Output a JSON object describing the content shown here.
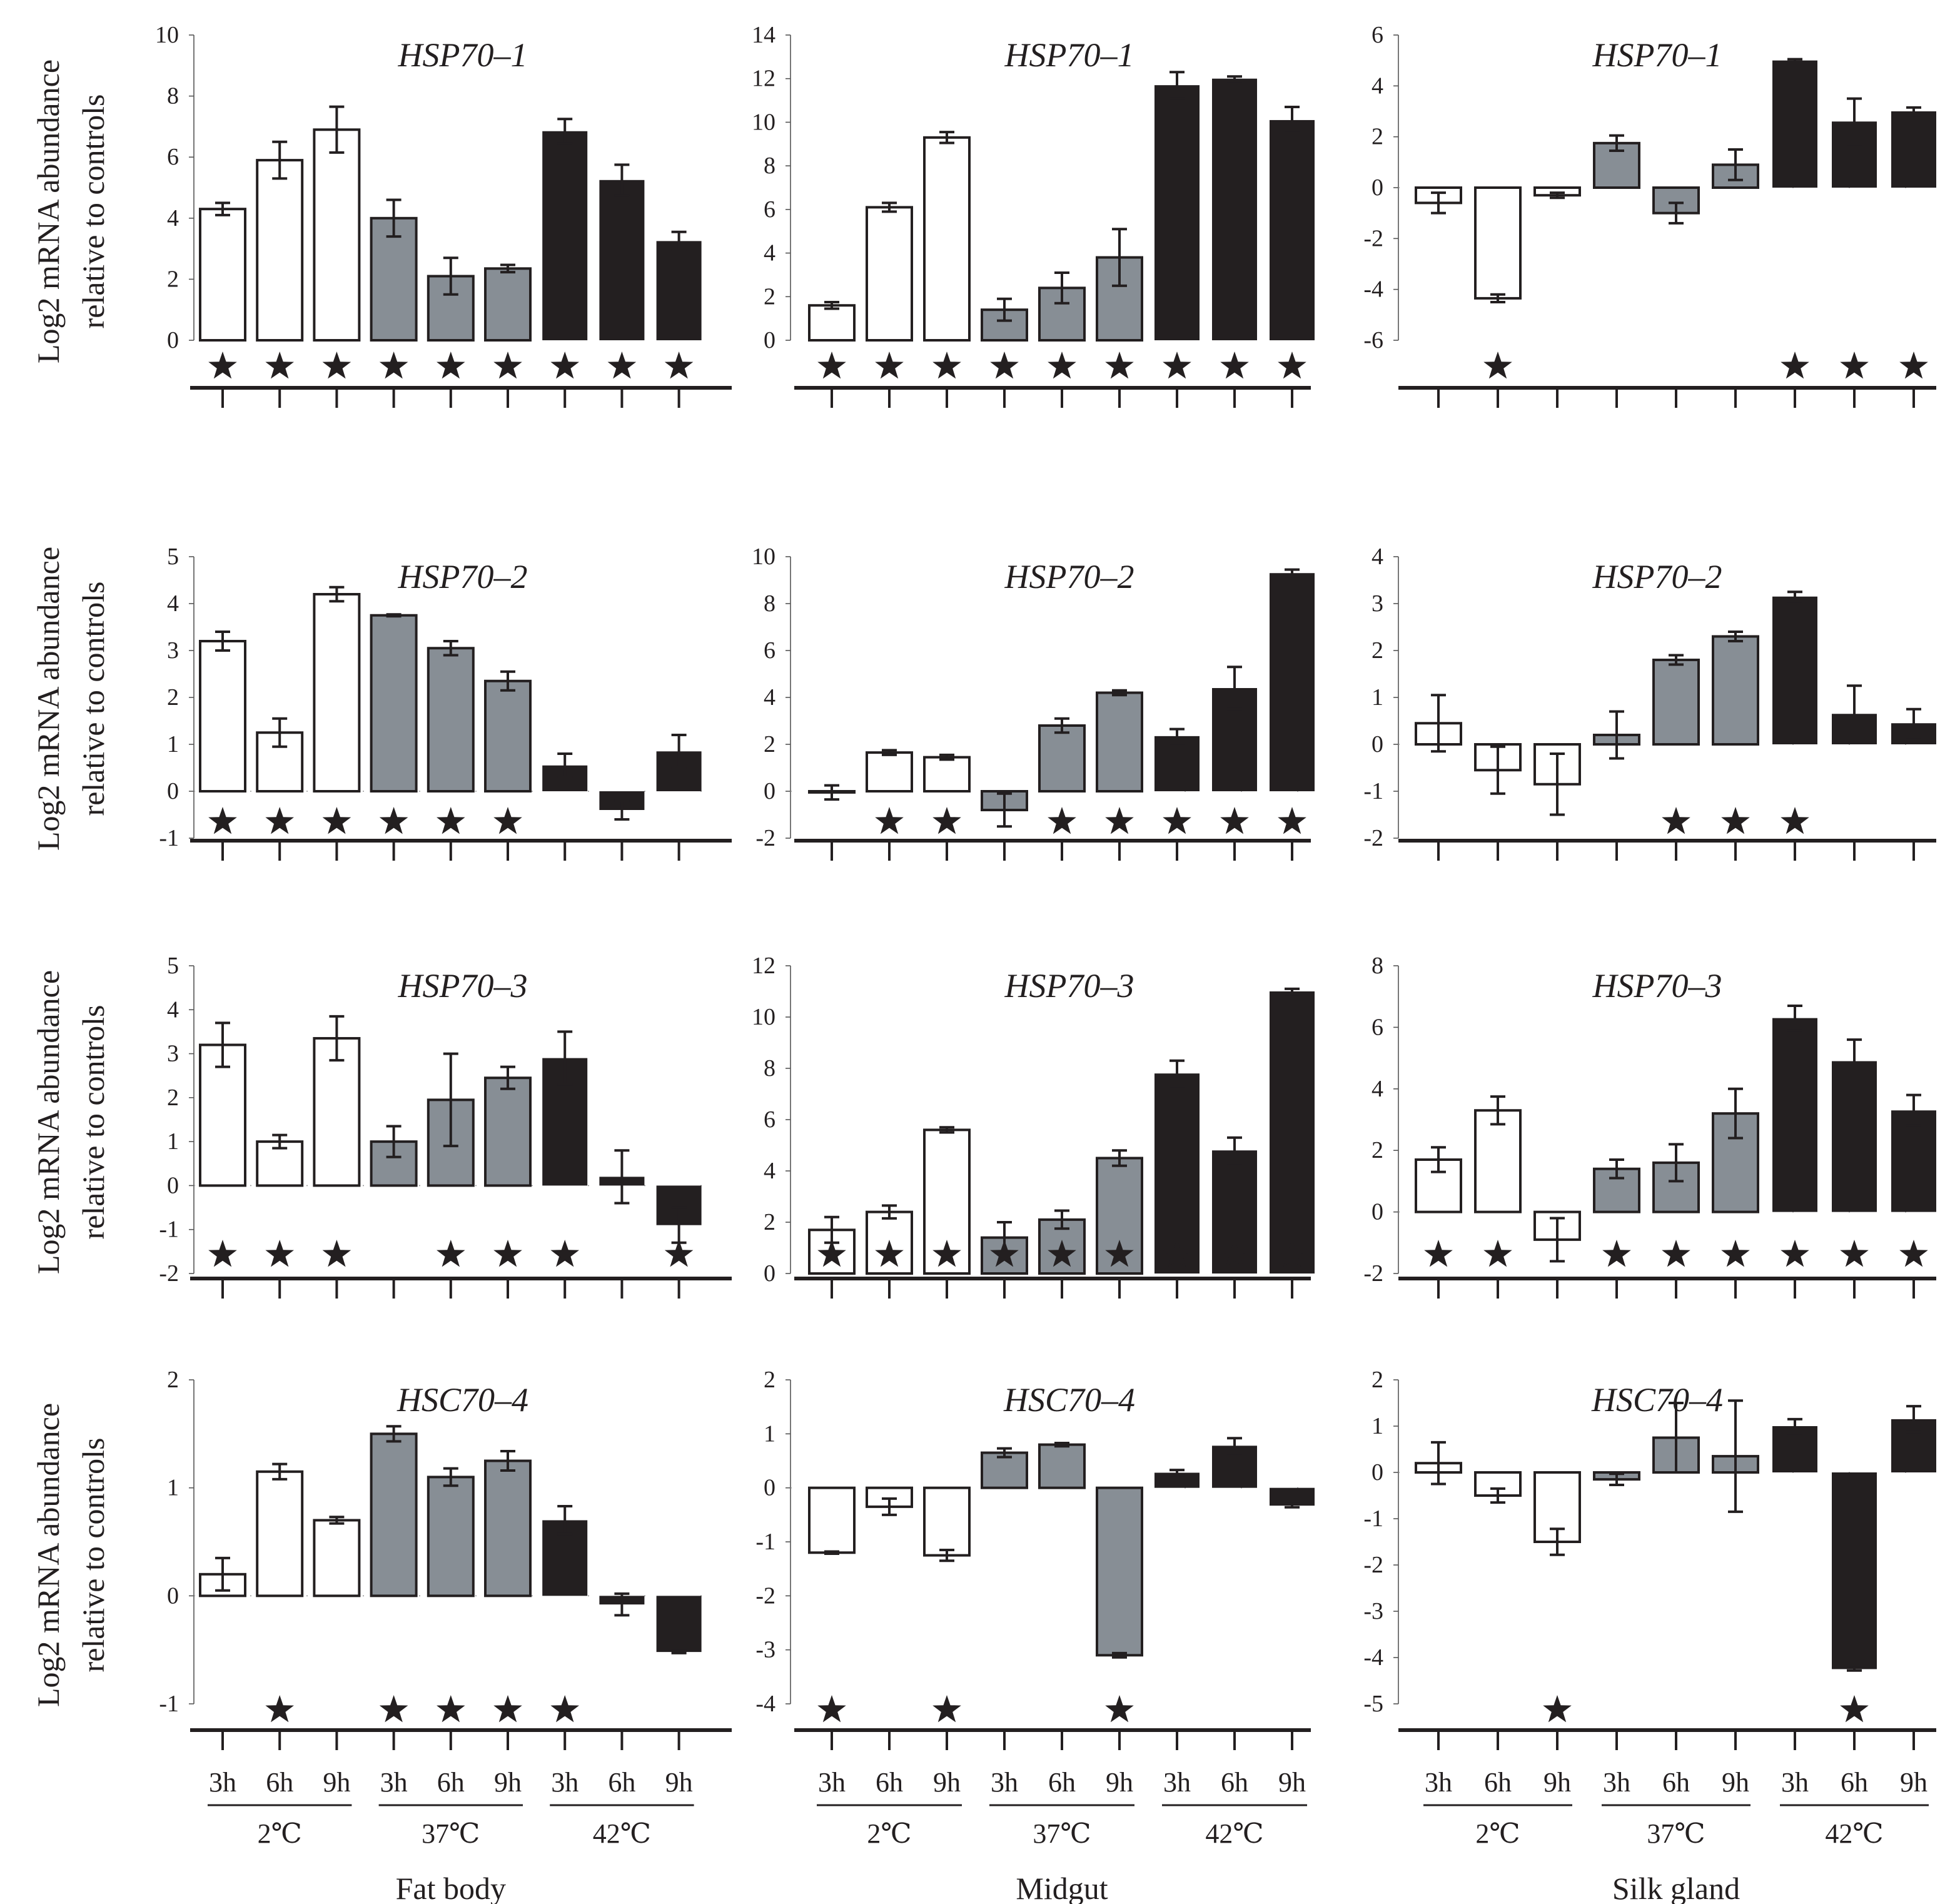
{
  "colors": {
    "cold": "#ffffff",
    "heat37": "#878e95",
    "heat42": "#231f20",
    "ink": "#231f20"
  },
  "ylabel_line1": "Log2 mRNA abundance",
  "ylabel_line2": "relative to controls",
  "time_labels": [
    "3h",
    "6h",
    "9h",
    "3h",
    "6h",
    "9h",
    "3h",
    "6h",
    "9h"
  ],
  "temperature_labels": [
    "2℃",
    "37℃",
    "42℃"
  ],
  "tissues": [
    "Fat body",
    "Midgut",
    "Silk gland"
  ],
  "chart_data": [
    {
      "type": "bar",
      "title": "HSP70–1",
      "tissue": "Fat body",
      "ylim": [
        0,
        10
      ],
      "yticks": [
        0,
        2,
        4,
        6,
        8,
        10
      ],
      "values": [
        4.3,
        5.9,
        6.9,
        4.0,
        2.1,
        2.35,
        6.85,
        5.25,
        3.25
      ],
      "errors": [
        0.2,
        0.6,
        0.75,
        0.6,
        0.6,
        0.12,
        0.4,
        0.5,
        0.3
      ],
      "significant": [
        1,
        1,
        1,
        1,
        1,
        1,
        1,
        1,
        1
      ]
    },
    {
      "type": "bar",
      "title": "HSP70–1",
      "tissue": "Midgut",
      "ylim": [
        0,
        14
      ],
      "yticks": [
        0,
        2,
        4,
        6,
        8,
        10,
        12,
        14
      ],
      "values": [
        1.6,
        6.1,
        9.3,
        1.4,
        2.4,
        3.8,
        11.7,
        12.0,
        10.1
      ],
      "errors": [
        0.15,
        0.2,
        0.25,
        0.5,
        0.7,
        1.3,
        0.6,
        0.1,
        0.6
      ],
      "significant": [
        1,
        1,
        1,
        1,
        1,
        1,
        1,
        1,
        1
      ]
    },
    {
      "type": "bar",
      "title": "HSP70–1",
      "tissue": "Silk gland",
      "ylim": [
        -6,
        6
      ],
      "yticks": [
        -6,
        -4,
        -2,
        0,
        2,
        4,
        6
      ],
      "values": [
        -0.6,
        -4.35,
        -0.3,
        1.75,
        -1.0,
        0.9,
        5.0,
        2.6,
        3.0
      ],
      "errors": [
        0.4,
        0.15,
        0.1,
        0.3,
        0.4,
        0.6,
        0.05,
        0.9,
        0.15
      ],
      "significant": [
        0,
        1,
        0,
        0,
        0,
        0,
        1,
        1,
        1
      ]
    },
    {
      "type": "bar",
      "title": "HSP70–2",
      "tissue": "Fat body",
      "ylim": [
        -1,
        5
      ],
      "yticks": [
        -1,
        0,
        1,
        2,
        3,
        4,
        5
      ],
      "values": [
        3.2,
        1.25,
        4.2,
        3.75,
        3.05,
        2.35,
        0.55,
        -0.4,
        0.85
      ],
      "errors": [
        0.2,
        0.3,
        0.15,
        0.02,
        0.15,
        0.2,
        0.25,
        0.2,
        0.35
      ],
      "significant": [
        1,
        1,
        1,
        1,
        1,
        1,
        0,
        0,
        0
      ]
    },
    {
      "type": "bar",
      "title": "HSP70–2",
      "tissue": "Midgut",
      "ylim": [
        -2,
        10
      ],
      "yticks": [
        -2,
        0,
        2,
        4,
        6,
        8,
        10
      ],
      "values": [
        -0.05,
        1.65,
        1.45,
        -0.8,
        2.8,
        4.2,
        2.35,
        4.4,
        9.3
      ],
      "errors": [
        0.3,
        0.1,
        0.1,
        0.7,
        0.3,
        0.1,
        0.3,
        0.9,
        0.15
      ],
      "significant": [
        0,
        1,
        1,
        0,
        1,
        1,
        1,
        1,
        1
      ]
    },
    {
      "type": "bar",
      "title": "HSP70–2",
      "tissue": "Silk gland",
      "ylim": [
        -2,
        4
      ],
      "yticks": [
        -2,
        -1,
        0,
        1,
        2,
        3,
        4
      ],
      "values": [
        0.45,
        -0.55,
        -0.85,
        0.2,
        1.8,
        2.3,
        3.15,
        0.65,
        0.45
      ],
      "errors": [
        0.6,
        0.5,
        0.65,
        0.5,
        0.1,
        0.1,
        0.1,
        0.6,
        0.3
      ],
      "significant": [
        0,
        0,
        0,
        0,
        1,
        1,
        1,
        0,
        0
      ]
    },
    {
      "type": "bar",
      "title": "HSP70–3",
      "tissue": "Fat body",
      "ylim": [
        -2,
        5
      ],
      "yticks": [
        -2,
        -1,
        0,
        1,
        2,
        3,
        4,
        5
      ],
      "values": [
        3.2,
        1.0,
        3.35,
        1.0,
        1.95,
        2.45,
        2.9,
        0.2,
        -0.9
      ],
      "errors": [
        0.5,
        0.15,
        0.5,
        0.35,
        1.05,
        0.25,
        0.6,
        0.6,
        0.4
      ],
      "significant": [
        1,
        1,
        1,
        0,
        1,
        1,
        1,
        0,
        1
      ]
    },
    {
      "type": "bar",
      "title": "HSP70–3",
      "tissue": "Midgut",
      "ylim": [
        0,
        12
      ],
      "yticks": [
        0,
        2,
        4,
        6,
        8,
        10,
        12
      ],
      "values": [
        1.7,
        2.4,
        5.6,
        1.4,
        2.1,
        4.5,
        7.8,
        4.8,
        11.0
      ],
      "errors": [
        0.5,
        0.25,
        0.1,
        0.6,
        0.35,
        0.3,
        0.5,
        0.5,
        0.1
      ],
      "significant": [
        1,
        1,
        1,
        1,
        1,
        1,
        1,
        1,
        1
      ]
    },
    {
      "type": "bar",
      "title": "HSP70–3",
      "tissue": "Silk gland",
      "ylim": [
        -2,
        8
      ],
      "yticks": [
        -2,
        0,
        2,
        4,
        6,
        8
      ],
      "values": [
        1.7,
        3.3,
        -0.9,
        1.4,
        1.6,
        3.2,
        6.3,
        4.9,
        3.3
      ],
      "errors": [
        0.4,
        0.45,
        0.7,
        0.3,
        0.6,
        0.8,
        0.4,
        0.7,
        0.5
      ],
      "significant": [
        1,
        1,
        0,
        1,
        1,
        1,
        1,
        1,
        1
      ]
    },
    {
      "type": "bar",
      "title": "HSC70–4",
      "tissue": "Fat body",
      "ylim": [
        -1,
        2
      ],
      "yticks": [
        -1,
        0,
        1,
        2
      ],
      "values": [
        0.2,
        1.15,
        0.7,
        1.5,
        1.1,
        1.25,
        0.7,
        -0.08,
        -0.52
      ],
      "errors": [
        0.15,
        0.07,
        0.03,
        0.07,
        0.08,
        0.09,
        0.13,
        0.1,
        0.01
      ],
      "significant": [
        0,
        1,
        0,
        1,
        1,
        1,
        1,
        0,
        0
      ]
    },
    {
      "type": "bar",
      "title": "HSC70–4",
      "tissue": "Midgut",
      "ylim": [
        -4,
        2
      ],
      "yticks": [
        -4,
        -3,
        -2,
        -1,
        0,
        1,
        2
      ],
      "values": [
        -1.2,
        -0.35,
        -1.25,
        0.65,
        0.8,
        -3.1,
        0.28,
        0.78,
        -0.33
      ],
      "errors": [
        0.02,
        0.15,
        0.1,
        0.08,
        0.03,
        0.04,
        0.05,
        0.14,
        0.03
      ],
      "significant": [
        1,
        0,
        1,
        0,
        0,
        1,
        0,
        0,
        0
      ]
    },
    {
      "type": "bar",
      "title": "HSC70–4",
      "tissue": "Silk gland",
      "ylim": [
        -5,
        2
      ],
      "yticks": [
        -5,
        -4,
        -3,
        -2,
        -1,
        0,
        1,
        2
      ],
      "values": [
        0.2,
        -0.5,
        -1.5,
        -0.15,
        0.75,
        0.35,
        1.0,
        -4.25,
        1.15
      ],
      "errors": [
        0.45,
        0.15,
        0.28,
        0.12,
        0.75,
        1.2,
        0.15,
        0.03,
        0.28
      ],
      "significant": [
        0,
        0,
        1,
        0,
        0,
        0,
        0,
        1,
        0
      ]
    }
  ]
}
